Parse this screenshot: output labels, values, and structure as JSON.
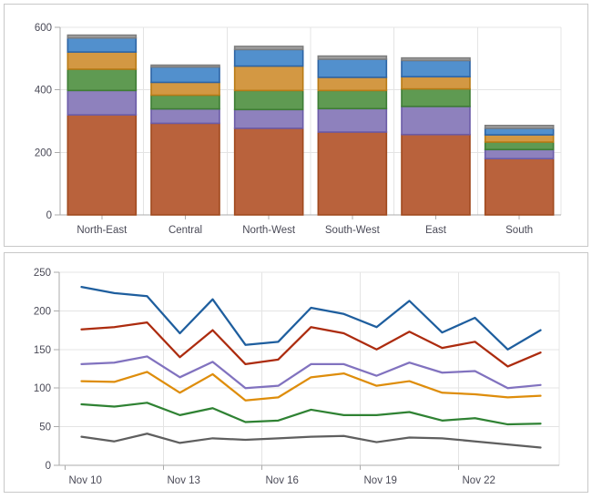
{
  "chart_data": [
    {
      "type": "bar",
      "stacked": true,
      "title": "",
      "categories": [
        "North-East",
        "Central",
        "North-West",
        "South-West",
        "East",
        "South"
      ],
      "series": [
        {
          "name": "sienna",
          "color": "#B9623C",
          "border": "#A04A1E",
          "values": [
            320,
            293,
            277,
            265,
            257,
            180
          ]
        },
        {
          "name": "purple",
          "color": "#8E81BD",
          "border": "#6B5BA7",
          "values": [
            78,
            46,
            60,
            75,
            90,
            29
          ]
        },
        {
          "name": "green",
          "color": "#5F9A52",
          "border": "#3E7D35",
          "values": [
            68,
            44,
            61,
            58,
            56,
            24
          ]
        },
        {
          "name": "orange",
          "color": "#D39843",
          "border": "#B87B16",
          "values": [
            55,
            41,
            78,
            42,
            39,
            23
          ]
        },
        {
          "name": "blue",
          "color": "#5290CD",
          "border": "#2D64A5",
          "values": [
            45,
            49,
            53,
            58,
            52,
            21
          ]
        },
        {
          "name": "gray",
          "color": "#A2A2A2",
          "border": "#7E7E7E",
          "values": [
            9,
            6,
            10,
            10,
            8,
            9
          ]
        }
      ],
      "xlabel": "",
      "ylabel": "",
      "ylim": [
        0,
        600
      ],
      "y_ticks": [
        0,
        200,
        400,
        600
      ],
      "grid": true,
      "legend": "none"
    },
    {
      "type": "line",
      "title": "",
      "n_points": 15,
      "x_tick_labels": [
        "Nov 10",
        "Nov 13",
        "Nov 16",
        "Nov 19",
        "Nov 22"
      ],
      "x_tick_indices": [
        0,
        3,
        6,
        9,
        12
      ],
      "series": [
        {
          "name": "blue",
          "color": "#1E5E9E",
          "values": [
            231,
            223,
            219,
            171,
            215,
            156,
            160,
            204,
            196,
            179,
            213,
            172,
            191,
            150,
            175
          ]
        },
        {
          "name": "red",
          "color": "#AC2B0E",
          "values": [
            176,
            179,
            185,
            140,
            175,
            131,
            137,
            179,
            171,
            150,
            173,
            152,
            160,
            128,
            146
          ]
        },
        {
          "name": "purple",
          "color": "#8172BF",
          "values": [
            131,
            133,
            141,
            114,
            134,
            100,
            103,
            131,
            131,
            116,
            133,
            120,
            122,
            100,
            104
          ]
        },
        {
          "name": "orange",
          "color": "#DE8D0B",
          "values": [
            109,
            108,
            121,
            94,
            118,
            84,
            88,
            114,
            119,
            103,
            109,
            94,
            92,
            88,
            90
          ]
        },
        {
          "name": "green",
          "color": "#2F8233",
          "values": [
            79,
            76,
            81,
            65,
            74,
            56,
            58,
            72,
            65,
            65,
            69,
            58,
            61,
            53,
            54
          ]
        },
        {
          "name": "gray",
          "color": "#5F5F5F",
          "values": [
            37,
            31,
            41,
            29,
            35,
            33,
            35,
            37,
            38,
            30,
            36,
            35,
            31,
            27,
            23
          ]
        }
      ],
      "xlabel": "",
      "ylabel": "",
      "ylim": [
        0,
        250
      ],
      "y_ticks": [
        0,
        50,
        100,
        150,
        200,
        250
      ],
      "grid": true,
      "legend": "none"
    }
  ]
}
